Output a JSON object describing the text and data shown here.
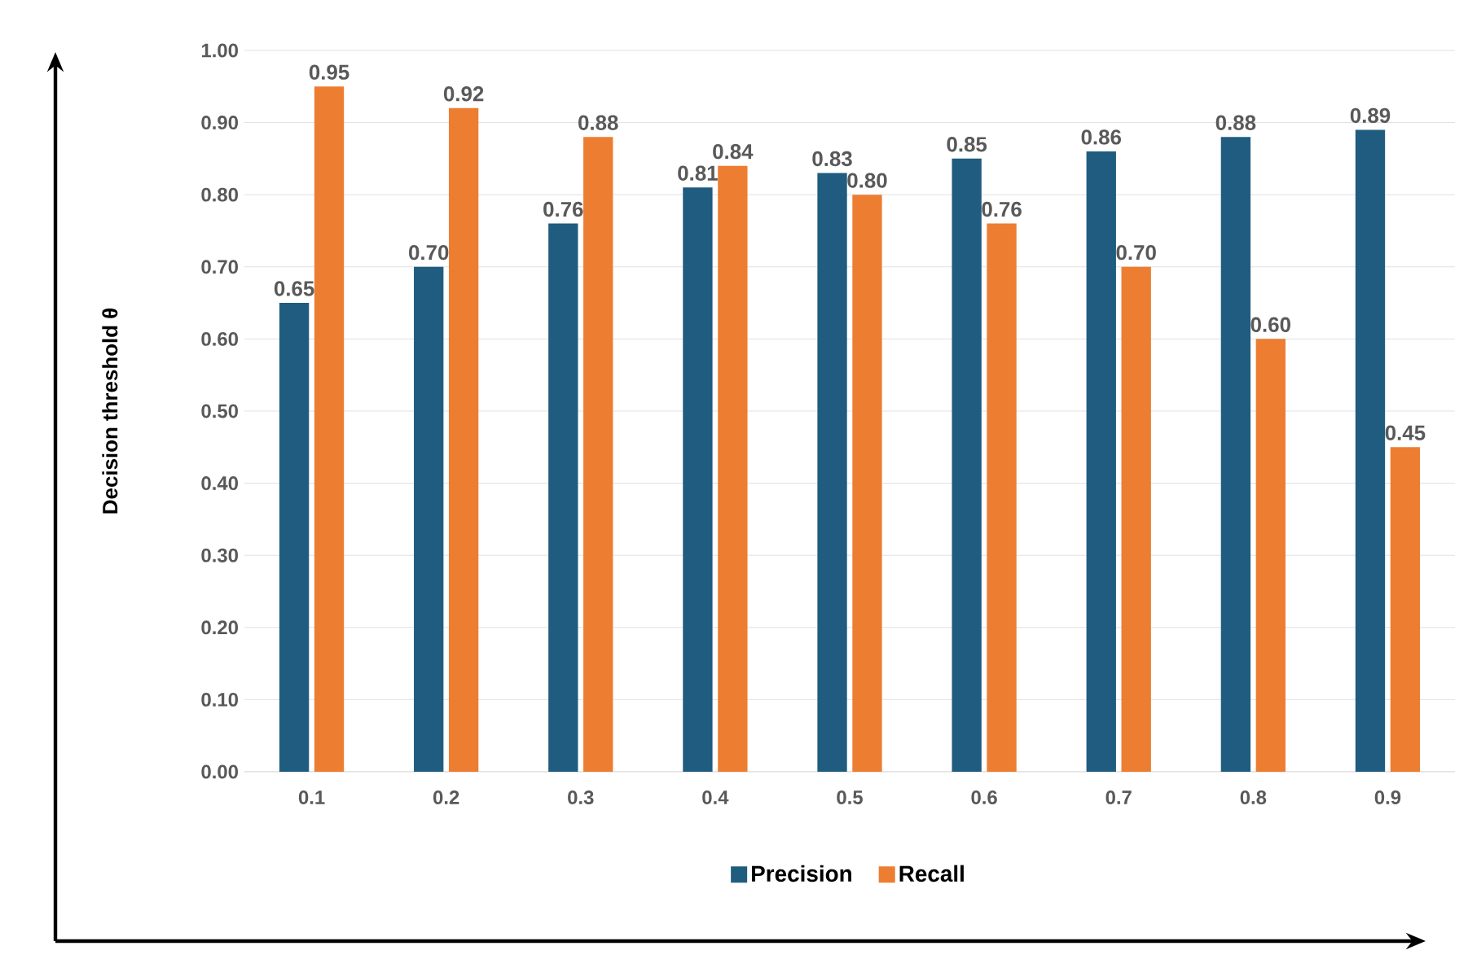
{
  "chart_data": {
    "type": "bar",
    "ylabel": "Decision threshold θ",
    "categories": [
      "0.1",
      "0.2",
      "0.3",
      "0.4",
      "0.5",
      "0.6",
      "0.7",
      "0.8",
      "0.9"
    ],
    "series": [
      {
        "name": "Precision",
        "color": "#1f5c80",
        "values": [
          0.65,
          0.7,
          0.76,
          0.81,
          0.83,
          0.85,
          0.86,
          0.88,
          0.89
        ],
        "value_labels": [
          "0.65",
          "0.70",
          "0.76",
          "0.81",
          "0.83",
          "0.85",
          "0.86",
          "0.88",
          "0.89"
        ]
      },
      {
        "name": "Recall",
        "color": "#ed7d31",
        "values": [
          0.95,
          0.92,
          0.88,
          0.84,
          0.8,
          0.76,
          0.7,
          0.6,
          0.45
        ],
        "value_labels": [
          "0.95",
          "0.92",
          "0.88",
          "0.84",
          "0.80",
          "0.76",
          "0.70",
          "0.60",
          "0.45"
        ]
      }
    ],
    "ylim": [
      0,
      1.0
    ],
    "yticks": [
      {
        "value": 0,
        "label": "0.00"
      },
      {
        "value": 0.1,
        "label": "0.10"
      },
      {
        "value": 0.2,
        "label": "0.20"
      },
      {
        "value": 0.3,
        "label": "0.30"
      },
      {
        "value": 0.4,
        "label": "0.40"
      },
      {
        "value": 0.5,
        "label": "0.50"
      },
      {
        "value": 0.6,
        "label": "0.60"
      },
      {
        "value": 0.7,
        "label": "0.70"
      },
      {
        "value": 0.8,
        "label": "0.80"
      },
      {
        "value": 0.9,
        "label": "0.90"
      },
      {
        "value": 1.0,
        "label": "1.00"
      }
    ],
    "grid": "y",
    "legend": "bottom"
  }
}
